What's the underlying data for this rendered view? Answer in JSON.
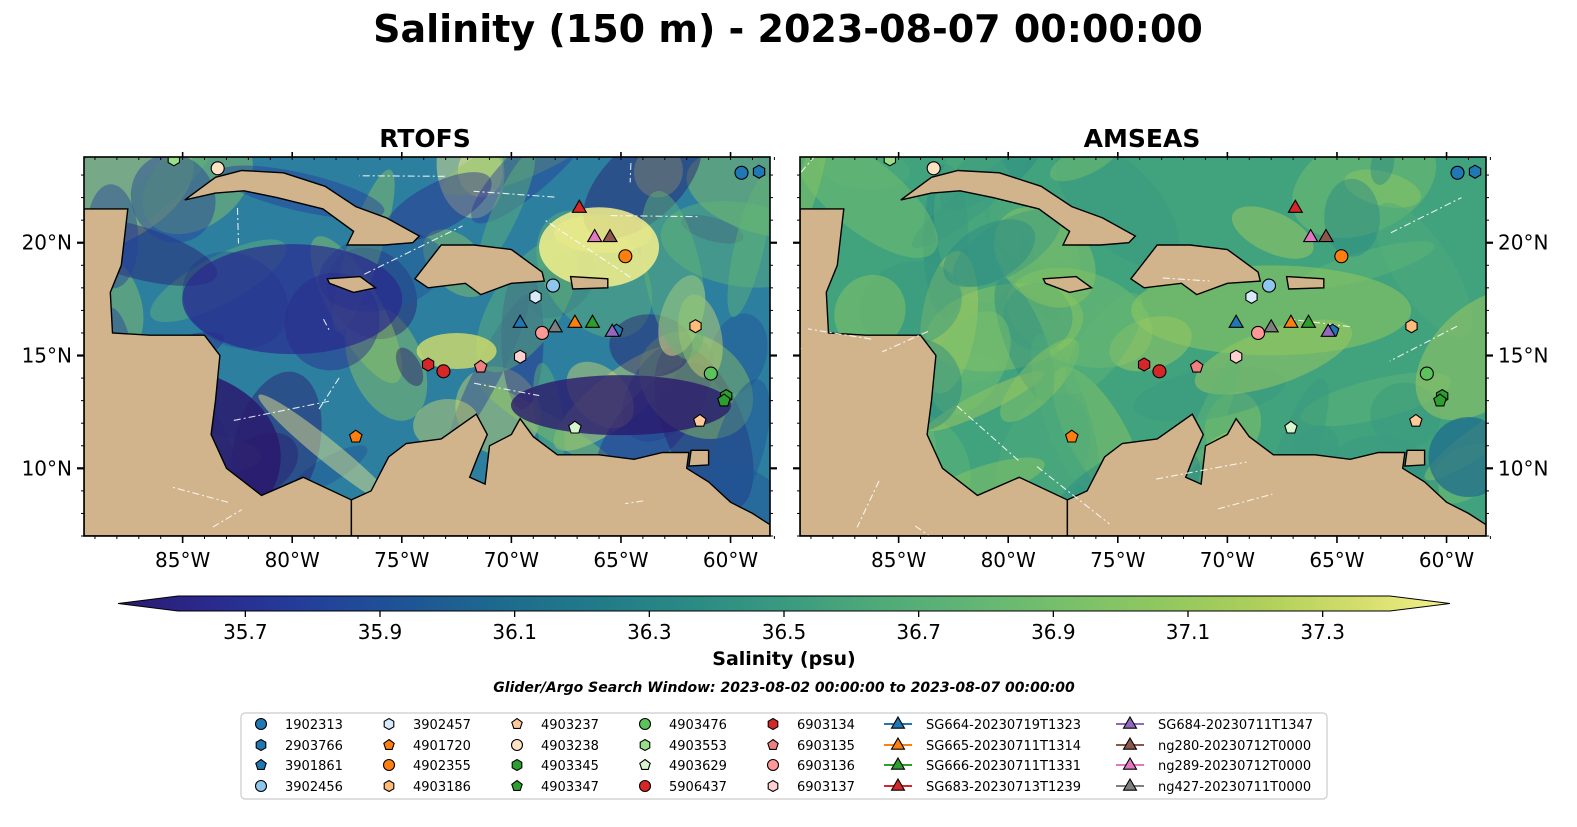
{
  "title": "Salinity (150 m) - 2023-08-07 00:00:00",
  "panels": [
    {
      "title": "RTOFS",
      "ticks_on": "left"
    },
    {
      "title": "AMSEAS",
      "ticks_on": "right"
    }
  ],
  "map_extent": {
    "lon_min": -89.5,
    "lon_max": -58.2,
    "lat_min": 7.0,
    "lat_max": 23.8
  },
  "lon_ticks": [
    {
      "value": -85,
      "label": "85°W"
    },
    {
      "value": -80,
      "label": "80°W"
    },
    {
      "value": -75,
      "label": "75°W"
    },
    {
      "value": -70,
      "label": "70°W"
    },
    {
      "value": -65,
      "label": "65°W"
    },
    {
      "value": -60,
      "label": "60°W"
    }
  ],
  "lat_ticks": [
    {
      "value": 20,
      "label": "20°N"
    },
    {
      "value": 15,
      "label": "15°N"
    },
    {
      "value": 10,
      "label": "10°N"
    }
  ],
  "colorbar": {
    "label": "Salinity (psu)",
    "min": 35.6,
    "max": 37.4,
    "extend": "both",
    "ticks": [
      "35.7",
      "35.9",
      "36.1",
      "36.3",
      "36.5",
      "36.7",
      "36.9",
      "37.1",
      "37.3"
    ],
    "colors": [
      "#2a1a6e",
      "#2a2a8f",
      "#233f9b",
      "#1e5496",
      "#1d6a8e",
      "#217a89",
      "#2a8a85",
      "#3a9a80",
      "#4faa79",
      "#62b674",
      "#79c06a",
      "#91c85f",
      "#aecf5a",
      "#d2dd6a",
      "#f4f08c"
    ]
  },
  "map_colors": {
    "land": "#d2b48c",
    "ocean_bg": "#9ab8e0",
    "rtofs_base": "#2d7fa0",
    "amseas_base": "#41a27e"
  },
  "search_window": "Glider/Argo Search Window: 2023-08-02 00:00:00 to 2023-08-07 00:00:00",
  "legend_items": [
    {
      "label": "1902313",
      "marker": "circle",
      "color": "#1f77b4"
    },
    {
      "label": "2903766",
      "marker": "hexagon",
      "color": "#1f77b4"
    },
    {
      "label": "3901861",
      "marker": "pentagon",
      "color": "#1f77b4"
    },
    {
      "label": "3902456",
      "marker": "circle",
      "color": "#8ec6ee"
    },
    {
      "label": "3902457",
      "marker": "hexagon",
      "color": "#d7ebfb"
    },
    {
      "label": "4901720",
      "marker": "pentagon",
      "color": "#ff7f0e"
    },
    {
      "label": "4902355",
      "marker": "circle",
      "color": "#ff7f0e"
    },
    {
      "label": "4903186",
      "marker": "hexagon",
      "color": "#ffbb78"
    },
    {
      "label": "4903237",
      "marker": "pentagon",
      "color": "#ffc99a"
    },
    {
      "label": "4903238",
      "marker": "circle",
      "color": "#ffe2c4"
    },
    {
      "label": "4903345",
      "marker": "hexagon",
      "color": "#2ca02c"
    },
    {
      "label": "4903347",
      "marker": "pentagon",
      "color": "#2ca02c"
    },
    {
      "label": "4903476",
      "marker": "circle",
      "color": "#5cc25c"
    },
    {
      "label": "4903553",
      "marker": "hexagon",
      "color": "#98df8a"
    },
    {
      "label": "4903629",
      "marker": "pentagon",
      "color": "#d8f5d0"
    },
    {
      "label": "5906437",
      "marker": "circle",
      "color": "#d62728"
    },
    {
      "label": "6903134",
      "marker": "hexagon",
      "color": "#d62728"
    },
    {
      "label": "6903135",
      "marker": "pentagon",
      "color": "#f08080"
    },
    {
      "label": "6903136",
      "marker": "circle",
      "color": "#ff9896"
    },
    {
      "label": "6903137",
      "marker": "hexagon",
      "color": "#ffd0d0"
    },
    {
      "label": "SG664-20230719T1323",
      "marker": "triangle",
      "color": "#1f77b4"
    },
    {
      "label": "SG665-20230711T1314",
      "marker": "triangle",
      "color": "#ff7f0e"
    },
    {
      "label": "SG666-20230711T1331",
      "marker": "triangle",
      "color": "#2ca02c"
    },
    {
      "label": "SG683-20230713T1239",
      "marker": "triangle",
      "color": "#d62728"
    },
    {
      "label": "SG684-20230711T1347",
      "marker": "triangle",
      "color": "#9467bd"
    },
    {
      "label": "ng280-20230712T0000",
      "marker": "triangle",
      "color": "#8c564b"
    },
    {
      "label": "ng289-20230712T0000",
      "marker": "triangle",
      "color": "#e377c2"
    },
    {
      "label": "ng427-20230711T0000",
      "marker": "triangle",
      "color": "#7f7f7f"
    }
  ],
  "platforms": [
    {
      "id": "1902313",
      "lon": -59.5,
      "lat": 23.1
    },
    {
      "id": "2903766",
      "lon": -58.7,
      "lat": 23.15
    },
    {
      "id": "3901861",
      "lon": -65.2,
      "lat": 16.1
    },
    {
      "id": "3902456",
      "lon": -68.1,
      "lat": 18.1
    },
    {
      "id": "3902457",
      "lon": -68.9,
      "lat": 17.6
    },
    {
      "id": "4901720",
      "lon": -77.1,
      "lat": 11.4
    },
    {
      "id": "4902355",
      "lon": -64.8,
      "lat": 19.4
    },
    {
      "id": "4903186",
      "lon": -61.6,
      "lat": 16.3
    },
    {
      "id": "4903237",
      "lon": -61.4,
      "lat": 12.1
    },
    {
      "id": "4903238",
      "lon": -83.4,
      "lat": 23.3
    },
    {
      "id": "4903345",
      "lon": -60.2,
      "lat": 13.2
    },
    {
      "id": "4903347",
      "lon": -60.3,
      "lat": 13.0
    },
    {
      "id": "4903476",
      "lon": -60.9,
      "lat": 14.2
    },
    {
      "id": "4903553",
      "lon": -85.4,
      "lat": 23.7
    },
    {
      "id": "4903629",
      "lon": -67.1,
      "lat": 11.8
    },
    {
      "id": "5906437",
      "lon": -73.1,
      "lat": 14.3
    },
    {
      "id": "6903134",
      "lon": -73.8,
      "lat": 14.6
    },
    {
      "id": "6903135",
      "lon": -71.4,
      "lat": 14.5
    },
    {
      "id": "6903136",
      "lon": -68.6,
      "lat": 16.0
    },
    {
      "id": "6903137",
      "lon": -69.6,
      "lat": 14.95
    },
    {
      "id": "SG664-20230719T1323",
      "lon": -69.6,
      "lat": 16.5
    },
    {
      "id": "SG665-20230711T1314",
      "lon": -67.1,
      "lat": 16.5
    },
    {
      "id": "SG666-20230711T1331",
      "lon": -66.3,
      "lat": 16.5
    },
    {
      "id": "SG683-20230713T1239",
      "lon": -66.9,
      "lat": 21.6
    },
    {
      "id": "SG684-20230711T1347",
      "lon": -65.4,
      "lat": 16.1
    },
    {
      "id": "ng280-20230712T0000",
      "lon": -65.5,
      "lat": 20.3
    },
    {
      "id": "ng289-20230712T0000",
      "lon": -66.2,
      "lat": 20.3
    },
    {
      "id": "ng427-20230711T0000",
      "lon": -68.0,
      "lat": 16.3
    }
  ],
  "land_polygons": [
    {
      "name": "Cuba",
      "points": [
        [
          -84.9,
          21.9
        ],
        [
          -83.5,
          22.9
        ],
        [
          -82.3,
          23.2
        ],
        [
          -80.4,
          23.1
        ],
        [
          -78.5,
          22.5
        ],
        [
          -77.1,
          21.6
        ],
        [
          -75.7,
          21.1
        ],
        [
          -74.2,
          20.3
        ],
        [
          -74.5,
          20.0
        ],
        [
          -75.8,
          19.9
        ],
        [
          -77.5,
          19.9
        ],
        [
          -77.2,
          20.5
        ],
        [
          -78.6,
          21.5
        ],
        [
          -80.7,
          22.0
        ],
        [
          -82.2,
          22.3
        ],
        [
          -83.5,
          22.2
        ],
        [
          -84.9,
          21.9
        ]
      ]
    },
    {
      "name": "Hispaniola",
      "points": [
        [
          -74.4,
          18.4
        ],
        [
          -73.2,
          19.9
        ],
        [
          -71.7,
          19.9
        ],
        [
          -70.0,
          19.7
        ],
        [
          -68.6,
          18.7
        ],
        [
          -68.5,
          18.3
        ],
        [
          -70.0,
          18.2
        ],
        [
          -71.4,
          17.7
        ],
        [
          -72.1,
          18.2
        ],
        [
          -73.8,
          18.0
        ],
        [
          -74.4,
          18.4
        ]
      ]
    },
    {
      "name": "Puerto Rico",
      "points": [
        [
          -67.3,
          18.5
        ],
        [
          -65.6,
          18.4
        ],
        [
          -65.6,
          18.0
        ],
        [
          -67.2,
          17.95
        ],
        [
          -67.3,
          18.5
        ]
      ]
    },
    {
      "name": "Jamaica",
      "points": [
        [
          -78.4,
          18.4
        ],
        [
          -76.9,
          18.5
        ],
        [
          -76.2,
          18.0
        ],
        [
          -77.2,
          17.8
        ],
        [
          -78.3,
          18.2
        ],
        [
          -78.4,
          18.4
        ]
      ]
    },
    {
      "name": "Central America",
      "points": [
        [
          -89.5,
          21.5
        ],
        [
          -87.5,
          21.5
        ],
        [
          -87.8,
          19.0
        ],
        [
          -88.3,
          17.8
        ],
        [
          -88.2,
          16.0
        ],
        [
          -86.5,
          15.9
        ],
        [
          -84.0,
          15.9
        ],
        [
          -83.3,
          15.0
        ],
        [
          -83.5,
          13.0
        ],
        [
          -83.7,
          11.5
        ],
        [
          -83.0,
          10.0
        ],
        [
          -81.4,
          8.8
        ],
        [
          -79.5,
          9.6
        ],
        [
          -77.3,
          8.6
        ],
        [
          -77.3,
          7.0
        ],
        [
          -89.5,
          7.0
        ]
      ]
    },
    {
      "name": "South America",
      "points": [
        [
          -77.3,
          8.6
        ],
        [
          -76.4,
          9.0
        ],
        [
          -75.6,
          10.5
        ],
        [
          -74.8,
          11.1
        ],
        [
          -73.2,
          11.3
        ],
        [
          -71.6,
          12.4
        ],
        [
          -71.1,
          11.5
        ],
        [
          -71.5,
          10.6
        ],
        [
          -71.9,
          9.6
        ],
        [
          -71.2,
          9.3
        ],
        [
          -71.0,
          11.0
        ],
        [
          -70.0,
          11.5
        ],
        [
          -69.6,
          12.2
        ],
        [
          -69.0,
          11.4
        ],
        [
          -67.9,
          10.6
        ],
        [
          -66.0,
          10.6
        ],
        [
          -64.4,
          10.4
        ],
        [
          -63.1,
          10.7
        ],
        [
          -61.9,
          10.7
        ],
        [
          -62.0,
          10.0
        ],
        [
          -61.0,
          9.4
        ],
        [
          -60.0,
          8.5
        ],
        [
          -59.0,
          8.0
        ],
        [
          -58.2,
          7.5
        ],
        [
          -58.2,
          7.0
        ],
        [
          -77.3,
          7.0
        ]
      ]
    },
    {
      "name": "Trinidad",
      "points": [
        [
          -61.9,
          10.1
        ],
        [
          -61.0,
          10.15
        ],
        [
          -61.0,
          10.8
        ],
        [
          -61.8,
          10.8
        ],
        [
          -61.9,
          10.1
        ]
      ]
    }
  ]
}
